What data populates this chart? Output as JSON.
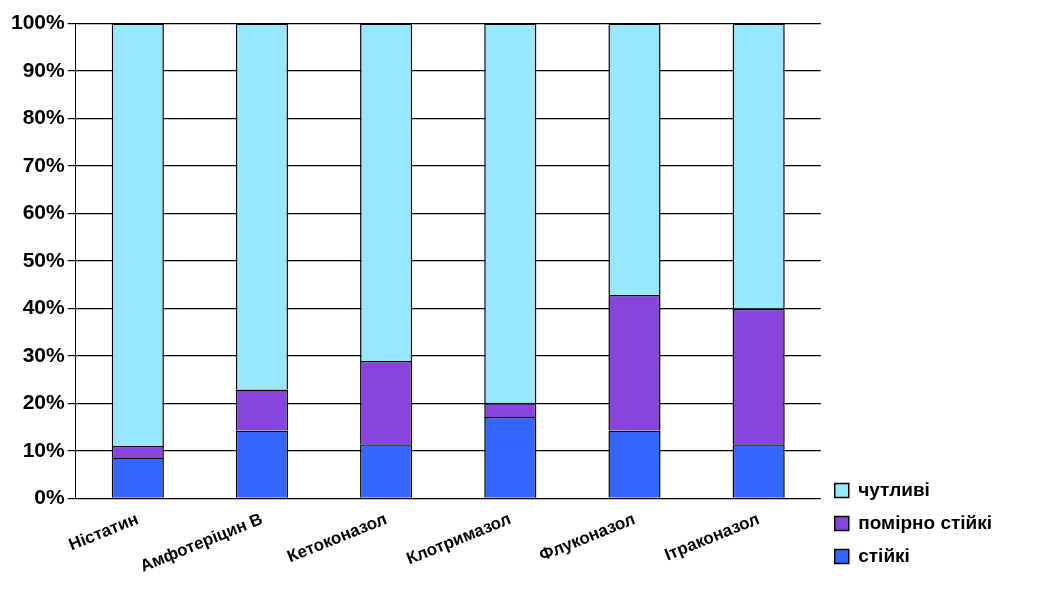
{
  "chart_data": {
    "type": "bar",
    "stacked": true,
    "categories": [
      "Ністатин",
      "Амфотеріцин В",
      "Кетоконазол",
      "Клотримазол",
      "Флуконазол",
      "Ітраконазол"
    ],
    "series": [
      {
        "name": "стійкі",
        "color": "#3366ff",
        "values": [
          8.5,
          14.3,
          11.4,
          17.1,
          14.3,
          11.4
        ]
      },
      {
        "name": "помірно стійкі",
        "color": "#8844dd",
        "values": [
          2.5,
          8.6,
          17.5,
          2.9,
          28.5,
          28.6
        ]
      },
      {
        "name": "чутливі",
        "color": "#99e6ff",
        "values": [
          89,
          77.1,
          71.1,
          80,
          57.2,
          60
        ]
      }
    ],
    "ylim": [
      0,
      100
    ],
    "yticks": [
      {
        "value": 0,
        "label": "0%"
      },
      {
        "value": 10,
        "label": "10%"
      },
      {
        "value": 20,
        "label": "20%"
      },
      {
        "value": 30,
        "label": "30%"
      },
      {
        "value": 40,
        "label": "40%"
      },
      {
        "value": 50,
        "label": "50%"
      },
      {
        "value": 60,
        "label": "60%"
      },
      {
        "value": 70,
        "label": "70%"
      },
      {
        "value": 80,
        "label": "80%"
      },
      {
        "value": 90,
        "label": "90%"
      },
      {
        "value": 100,
        "label": "100%"
      }
    ],
    "grid": "y",
    "legend": "bottom right"
  }
}
